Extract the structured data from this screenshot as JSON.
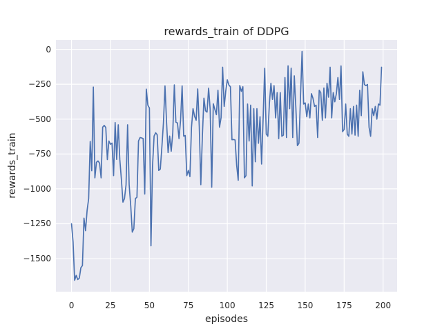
{
  "chart_data": {
    "type": "line",
    "title": "rewards_train of DDPG",
    "xlabel": "episodes",
    "ylabel": "rewards_train",
    "x_ticks": [
      0,
      25,
      50,
      75,
      100,
      125,
      150,
      175,
      200
    ],
    "y_ticks": [
      0,
      -250,
      -500,
      -750,
      -1000,
      -1250,
      -1500
    ],
    "xlim": [
      -10,
      209
    ],
    "ylim": [
      -1737,
      67
    ],
    "grid": true,
    "legend": "none",
    "style": "seaborn-darkgrid",
    "colors": {
      "line": "#4C72B0",
      "axes_background": "#EAEAF2",
      "grid": "#FFFFFF",
      "figure_background": "#FFFFFF",
      "text": "#262626"
    },
    "series": [
      {
        "name": "rewards_train",
        "x_start": 0,
        "x_step": 1,
        "values": [
          -1250,
          -1380,
          -1655,
          -1620,
          -1650,
          -1640,
          -1565,
          -1550,
          -1210,
          -1300,
          -1155,
          -1070,
          -660,
          -870,
          -270,
          -921,
          -810,
          -800,
          -815,
          -921,
          -558,
          -545,
          -560,
          -790,
          -657,
          -680,
          -672,
          -905,
          -525,
          -789,
          -541,
          -789,
          -930,
          -1095,
          -1070,
          -971,
          -541,
          -971,
          -1120,
          -1310,
          -1285,
          -1070,
          -1060,
          -657,
          -632,
          -635,
          -640,
          -1037,
          -285,
          -400,
          -420,
          -1408,
          -838,
          -622,
          -598,
          -612,
          -868,
          -858,
          -700,
          -528,
          -262,
          -520,
          -740,
          -622,
          -730,
          -598,
          -255,
          -522,
          -528,
          -640,
          -508,
          -262,
          -622,
          -618,
          -905,
          -868,
          -912,
          -560,
          -425,
          -480,
          -508,
          -284,
          -552,
          -970,
          -620,
          -350,
          -440,
          -450,
          -278,
          -430,
          -988,
          -390,
          -430,
          -468,
          -293,
          -558,
          -490,
          -128,
          -409,
          -300,
          -219,
          -255,
          -268,
          -648,
          -646,
          -650,
          -830,
          -938,
          -260,
          -301,
          -268,
          -921,
          -905,
          -392,
          -657,
          -400,
          -979,
          -425,
          -806,
          -425,
          -673,
          -483,
          -822,
          -491,
          -136,
          -607,
          -623,
          -392,
          -243,
          -359,
          -260,
          -491,
          -310,
          -640,
          -310,
          -623,
          -615,
          -202,
          -632,
          -118,
          -425,
          -135,
          -632,
          -190,
          -417,
          -690,
          -673,
          -334,
          -15,
          -392,
          -384,
          -483,
          -392,
          -491,
          -318,
          -351,
          -409,
          -400,
          -632,
          -293,
          -310,
          -508,
          -277,
          -491,
          -243,
          -343,
          -128,
          -491,
          -310,
          -376,
          -318,
          -202,
          -359,
          -119,
          -590,
          -574,
          -392,
          -607,
          -623,
          -425,
          -607,
          -409,
          -615,
          -400,
          -623,
          -293,
          -475,
          -161,
          -252,
          -260,
          -252,
          -558,
          -623,
          -425,
          -475,
          -409,
          -500,
          -392,
          -400,
          -128
        ]
      }
    ]
  }
}
